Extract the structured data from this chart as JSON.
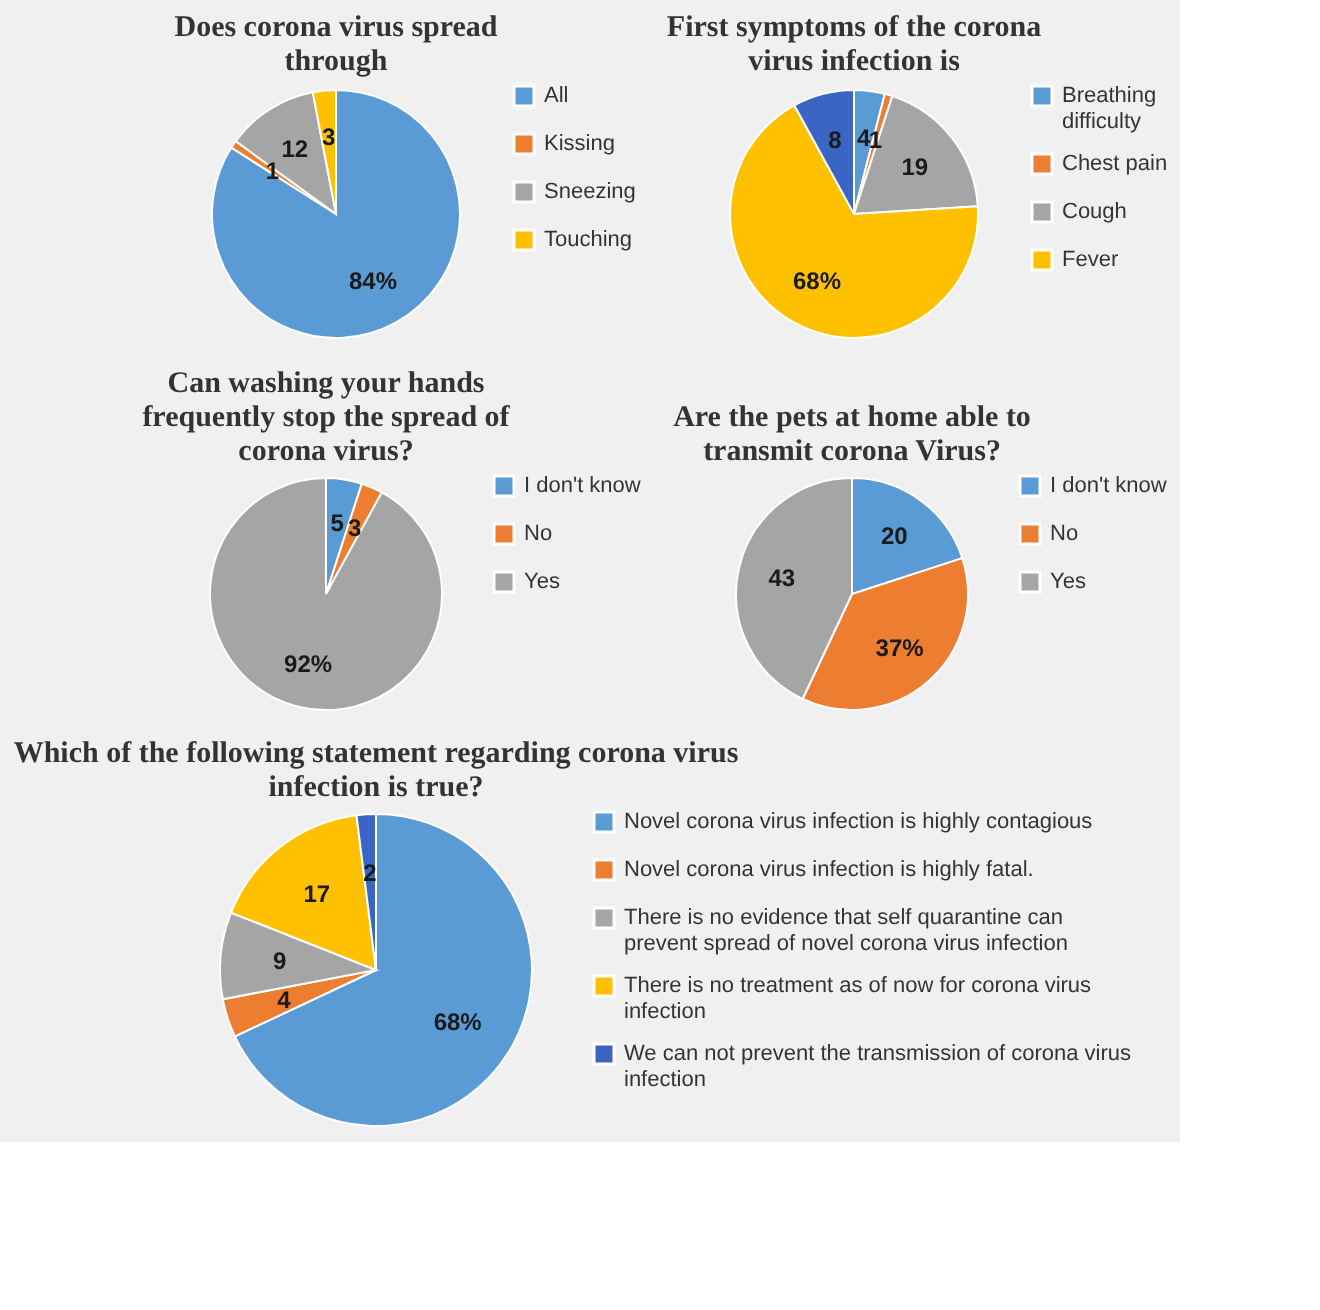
{
  "chart_data": [
    {
      "type": "pie",
      "title": "Does corona virus spread through",
      "categories": [
        "All",
        "Kissing",
        "Sneezing",
        "Touching"
      ],
      "values": [
        84,
        1,
        12,
        3
      ],
      "value_labels": [
        "84%",
        "1",
        "12",
        "3"
      ],
      "colors": [
        "#5b9bd5",
        "#ed7d31",
        "#a5a5a5",
        "#ffc000"
      ],
      "legend": "right"
    },
    {
      "type": "pie",
      "title": "First symptoms of the corona virus infection is",
      "categories": [
        "Breathing difficulty",
        "Chest pain",
        "Cough",
        "Fever",
        null
      ],
      "values": [
        4,
        1,
        19,
        68,
        8
      ],
      "value_labels": [
        "4",
        "1",
        "19",
        "68%",
        "8"
      ],
      "colors": [
        "#5b9bd5",
        "#ed7d31",
        "#a5a5a5",
        "#ffc000",
        "#3a65c4"
      ],
      "legend": "right"
    },
    {
      "type": "pie",
      "title": "Can washing your hands frequently stop the spread of corona virus?",
      "categories": [
        "I don't know",
        "No",
        "Yes"
      ],
      "values": [
        5,
        3,
        92
      ],
      "value_labels": [
        "5",
        "3",
        "92%"
      ],
      "colors": [
        "#5b9bd5",
        "#ed7d31",
        "#a5a5a5"
      ],
      "legend": "right"
    },
    {
      "type": "pie",
      "title": "Are the pets at home able to transmit corona Virus?",
      "categories": [
        "I don't know",
        "No",
        "Yes"
      ],
      "values": [
        20,
        37,
        43
      ],
      "value_labels": [
        "20",
        "37%",
        "43"
      ],
      "colors": [
        "#5b9bd5",
        "#ed7d31",
        "#a5a5a5"
      ],
      "legend": "right"
    },
    {
      "type": "pie",
      "title": "Which of the following statement regarding corona virus infection is true?",
      "categories": [
        "Novel corona virus infection is highly contagious",
        "Novel corona virus infection is highly fatal.",
        "There is no evidence that self quarantine can prevent spread of novel corona virus infection",
        "There is no treatment as of now for corona virus infection",
        "We can not prevent the transmission of corona virus infection"
      ],
      "values": [
        68,
        4,
        9,
        17,
        2
      ],
      "value_labels": [
        "68%",
        "4",
        "9",
        "17",
        "2"
      ],
      "colors": [
        "#5b9bd5",
        "#ed7d31",
        "#a5a5a5",
        "#ffc000",
        "#3a65c4"
      ],
      "legend": "right"
    }
  ]
}
